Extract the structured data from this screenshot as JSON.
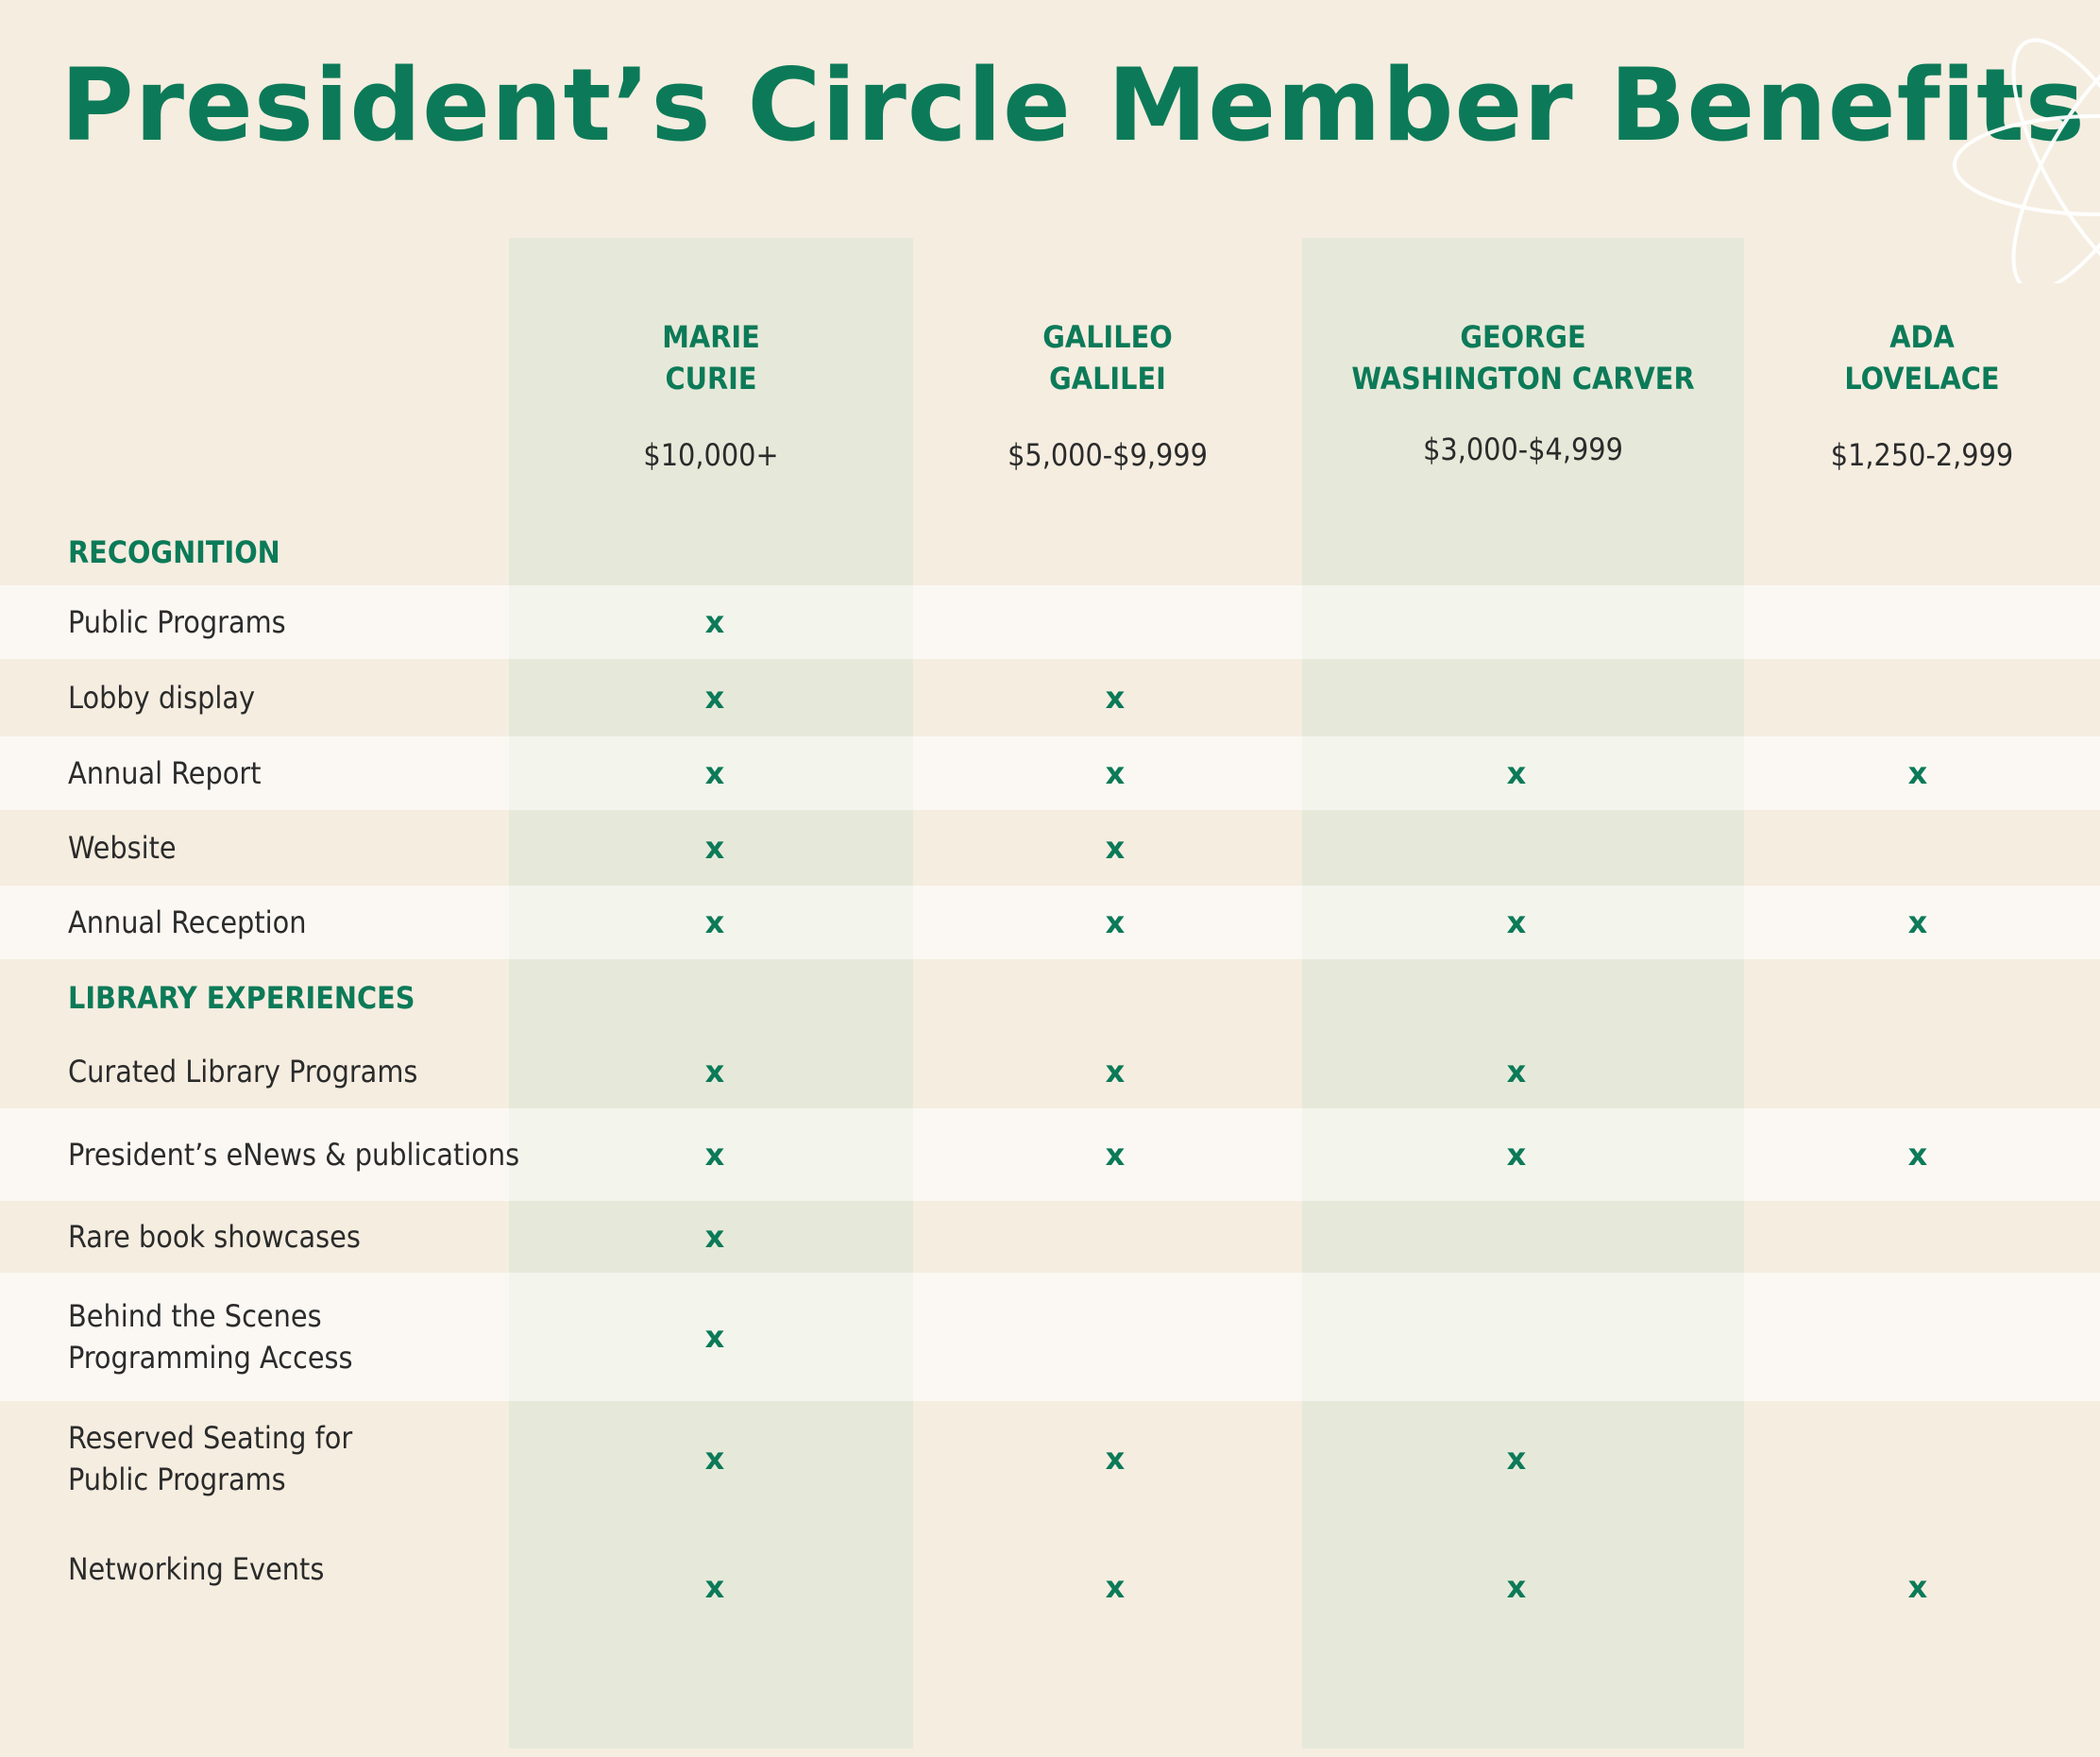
{
  "title": "President’s Circle Member Benefits",
  "colors": {
    "accent": "#0c7a58",
    "background": "#f5ede0",
    "band": "#e6e9d9"
  },
  "decoration": "atom-icon",
  "levels": [
    {
      "name": "MARIE\nCURIE",
      "amount": "$10,000+"
    },
    {
      "name": "GALILEO\nGALILEI",
      "amount": "$5,000-$9,999"
    },
    {
      "name": "GEORGE\nWASHINGTON CARVER",
      "amount": "$3,000-$4,999"
    },
    {
      "name": "ADA\nLOVELACE",
      "amount": "$1,250-2,999"
    }
  ],
  "check_mark": "x",
  "sections": [
    {
      "label": "RECOGNITION",
      "rows": [
        {
          "benefit": "Public Programs",
          "included": [
            true,
            false,
            false,
            false
          ]
        },
        {
          "benefit": "Lobby display",
          "included": [
            true,
            true,
            false,
            false
          ]
        },
        {
          "benefit": "Annual Report",
          "included": [
            true,
            true,
            true,
            true
          ]
        },
        {
          "benefit": "Website",
          "included": [
            true,
            true,
            false,
            false
          ]
        },
        {
          "benefit": "Annual Reception",
          "included": [
            true,
            true,
            true,
            true
          ]
        }
      ]
    },
    {
      "label": "LIBRARY EXPERIENCES",
      "rows": [
        {
          "benefit": "Curated Library Programs",
          "included": [
            true,
            true,
            true,
            false
          ]
        },
        {
          "benefit": "President’s eNews & publications",
          "included": [
            true,
            true,
            true,
            true
          ]
        },
        {
          "benefit": "Rare book showcases",
          "included": [
            true,
            false,
            false,
            false
          ]
        },
        {
          "benefit": "Behind the Scenes\nProgramming Access",
          "included": [
            true,
            false,
            false,
            false
          ]
        },
        {
          "benefit": "Reserved Seating for\nPublic Programs",
          "included": [
            true,
            true,
            true,
            false
          ]
        },
        {
          "benefit": "Networking Events",
          "included": [
            true,
            true,
            true,
            true
          ]
        }
      ]
    }
  ]
}
